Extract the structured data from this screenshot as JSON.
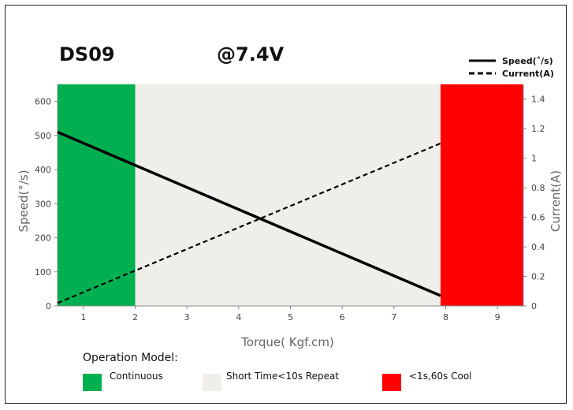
{
  "chart_data": {
    "type": "line",
    "title": "DS09",
    "subtitle": "@7.4V",
    "xlabel": "Torque( Kgf.cm)",
    "ylabel": "Speed(°/s)",
    "y2label": "Current(A)",
    "xlim": [
      0.5,
      9.5
    ],
    "ylim": [
      0,
      650
    ],
    "y2lim": [
      0,
      1.5
    ],
    "x_ticks": [
      1,
      2,
      3,
      4,
      5,
      6,
      7,
      8,
      9
    ],
    "y_ticks": [
      0,
      100,
      200,
      300,
      400,
      500,
      600
    ],
    "y2_ticks": [
      0,
      0.2,
      0.4,
      0.6,
      0.8,
      1,
      1.2,
      1.4
    ],
    "grid": false,
    "legend_position": "top-right",
    "series": [
      {
        "name": "Speed(˚/s)",
        "axis": "left",
        "style": "solid",
        "x": [
          0.5,
          7.9
        ],
        "y": [
          510,
          30
        ]
      },
      {
        "name": "Current(A)",
        "axis": "right",
        "style": "dashed",
        "x": [
          0.5,
          7.9
        ],
        "y": [
          0.02,
          1.1
        ]
      }
    ],
    "regions": [
      {
        "label": "Continuous",
        "x_start": 0.5,
        "x_end": 2.0,
        "color": "#00b050"
      },
      {
        "label": "Short Time<10s Repeat",
        "x_start": 2.0,
        "x_end": 7.9,
        "color": "#f0eee8"
      },
      {
        "label": "<1s,60s Cool",
        "x_start": 7.9,
        "x_end": 9.5,
        "color": "#ff0000"
      }
    ],
    "operation_model_title": "Operation Model:"
  }
}
